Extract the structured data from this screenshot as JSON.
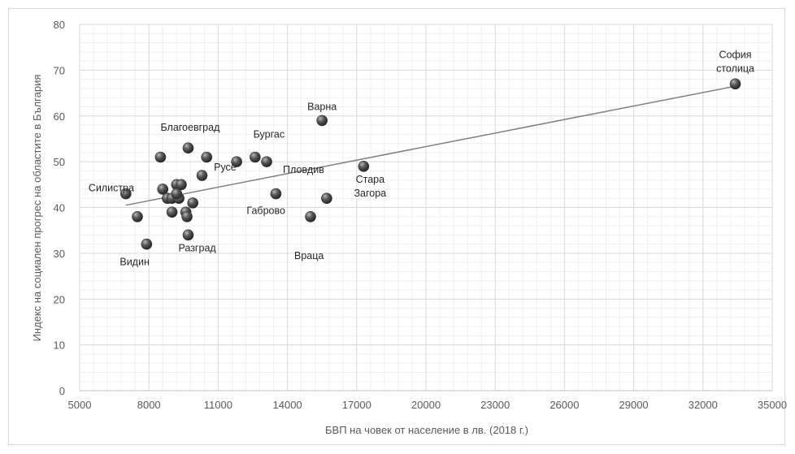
{
  "chart_data": {
    "type": "scatter",
    "title": "",
    "xlabel": "БВП на човек от население в лв. (2018 г.)",
    "ylabel": "Индекс на социален прогрес на областите в България",
    "xlim": [
      5000,
      35000
    ],
    "ylim": [
      0,
      80
    ],
    "x_ticks": [
      5000,
      8000,
      11000,
      14000,
      17000,
      20000,
      23000,
      26000,
      29000,
      32000,
      35000
    ],
    "y_ticks": [
      0,
      10,
      20,
      30,
      40,
      50,
      60,
      70,
      80
    ],
    "grid": true,
    "minor_grid": true,
    "trendline": {
      "x": [
        7000,
        33400
      ],
      "y": [
        40.5,
        66.5
      ]
    },
    "marker_color": "#4d4d4d",
    "points": [
      {
        "x": 33400,
        "y": 67,
        "label": "София столица"
      },
      {
        "x": 15500,
        "y": 59,
        "label": "Варна"
      },
      {
        "x": 17300,
        "y": 49,
        "label": "Стара Загора"
      },
      {
        "x": 12600,
        "y": 51,
        "label": "Бургас"
      },
      {
        "x": 13100,
        "y": 50,
        "label": "Пловдив"
      },
      {
        "x": 11800,
        "y": 50,
        "label": "Русе"
      },
      {
        "x": 13500,
        "y": 43,
        "label": "Габрово"
      },
      {
        "x": 15000,
        "y": 38,
        "label": "Враца"
      },
      {
        "x": 15700,
        "y": 42,
        "label": ""
      },
      {
        "x": 9700,
        "y": 53,
        "label": "Благоевград"
      },
      {
        "x": 10500,
        "y": 51,
        "label": ""
      },
      {
        "x": 8500,
        "y": 51,
        "label": ""
      },
      {
        "x": 10300,
        "y": 47,
        "label": ""
      },
      {
        "x": 7000,
        "y": 43,
        "label": "Силистра"
      },
      {
        "x": 8600,
        "y": 44,
        "label": ""
      },
      {
        "x": 9200,
        "y": 45,
        "label": ""
      },
      {
        "x": 9400,
        "y": 45,
        "label": ""
      },
      {
        "x": 8800,
        "y": 42,
        "label": ""
      },
      {
        "x": 9000,
        "y": 42,
        "label": ""
      },
      {
        "x": 9300,
        "y": 42,
        "label": ""
      },
      {
        "x": 9200,
        "y": 43,
        "label": ""
      },
      {
        "x": 9900,
        "y": 41,
        "label": ""
      },
      {
        "x": 9000,
        "y": 39,
        "label": ""
      },
      {
        "x": 9600,
        "y": 39,
        "label": ""
      },
      {
        "x": 9650,
        "y": 38,
        "label": ""
      },
      {
        "x": 7500,
        "y": 38,
        "label": ""
      },
      {
        "x": 7900,
        "y": 32,
        "label": "Видин"
      },
      {
        "x": 9700,
        "y": 34,
        "label": "Разград"
      }
    ]
  }
}
